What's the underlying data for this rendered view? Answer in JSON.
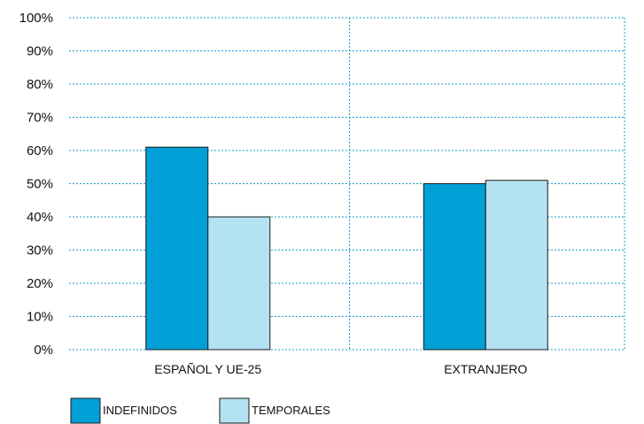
{
  "chart_data": {
    "type": "bar",
    "categories": [
      "ESPAÑOL Y UE-25",
      "EXTRANJERO"
    ],
    "series": [
      {
        "name": "INDEFINIDOS",
        "values": [
          61,
          50
        ]
      },
      {
        "name": "TEMPORALES",
        "values": [
          40,
          51
        ]
      }
    ],
    "ylim": [
      0,
      100
    ],
    "yticks": [
      "0%",
      "10%",
      "20%",
      "30%",
      "40%",
      "50%",
      "60%",
      "70%",
      "80%",
      "90%",
      "100%"
    ],
    "grid": true,
    "legend_position": "bottom-left"
  },
  "colors": {
    "series": [
      "#00a0d6",
      "#b3e3f3"
    ],
    "grid": "#1a9bd0",
    "bar_border": "#1a1a1a"
  }
}
